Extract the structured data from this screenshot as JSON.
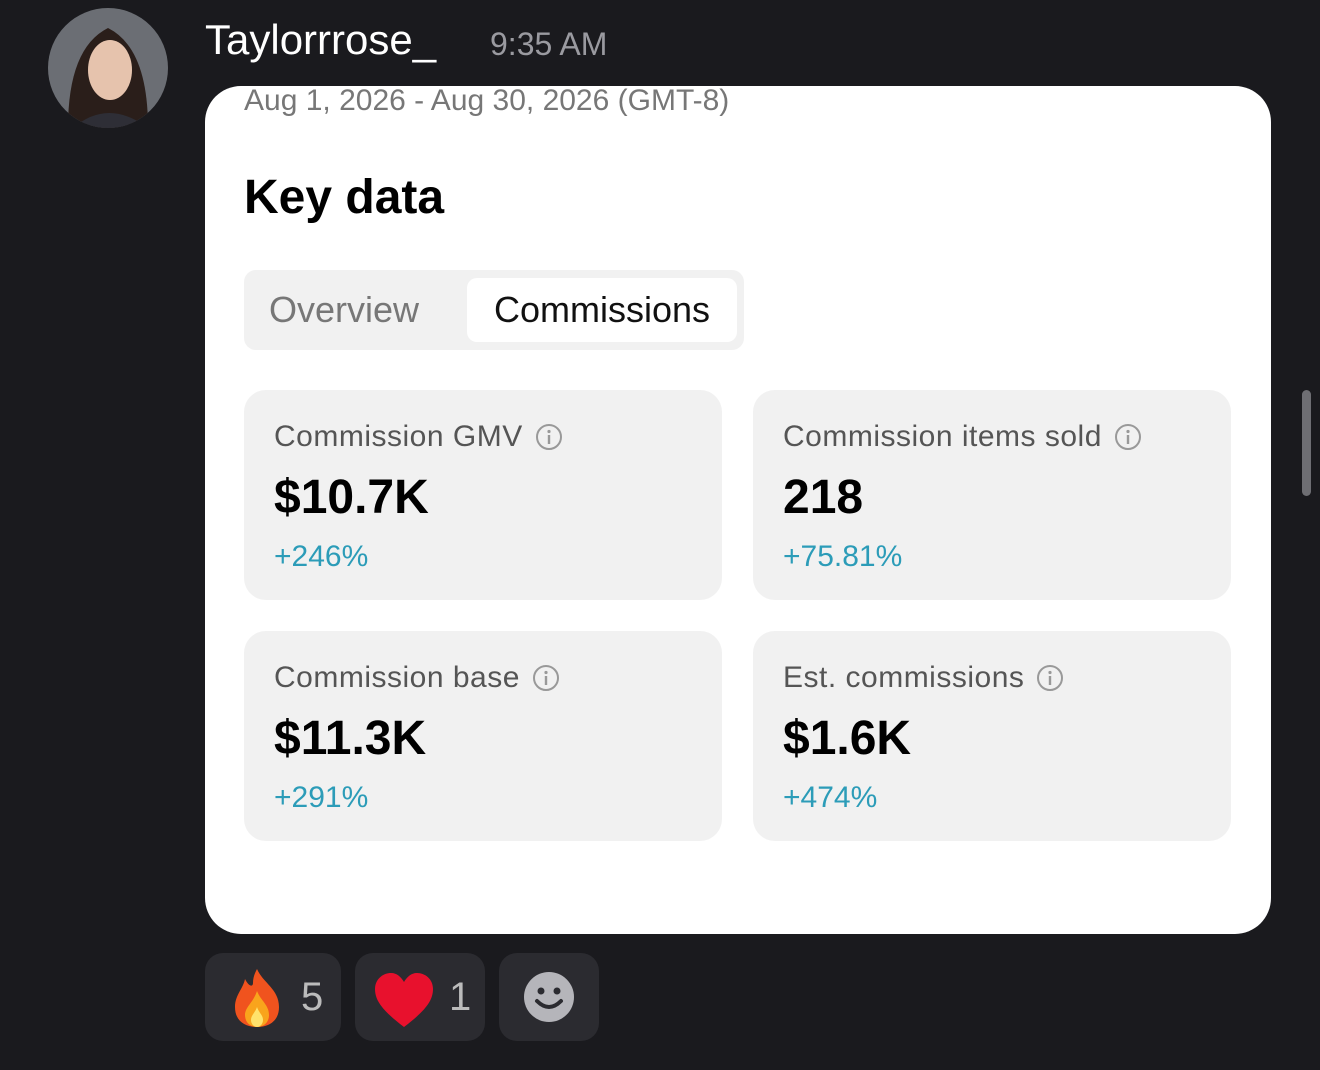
{
  "message": {
    "username": "Taylorrrose_",
    "time": "9:35 AM"
  },
  "card": {
    "date_range": "Aug 1, 2026 - Aug 30, 2026 (GMT-8)",
    "title": "Key data",
    "tabs": [
      "Overview",
      "Commissions"
    ],
    "metrics": [
      {
        "label": "Commission GMV",
        "value": "$10.7K",
        "change": "+246%"
      },
      {
        "label": "Commission items sold",
        "value": "218",
        "change": "+75.81%"
      },
      {
        "label": "Commission base",
        "value": "$11.3K",
        "change": "+291%"
      },
      {
        "label": "Est. commissions",
        "value": "$1.6K",
        "change": "+474%"
      }
    ]
  },
  "reactions": [
    {
      "count": 5
    },
    {
      "count": 1
    }
  ]
}
